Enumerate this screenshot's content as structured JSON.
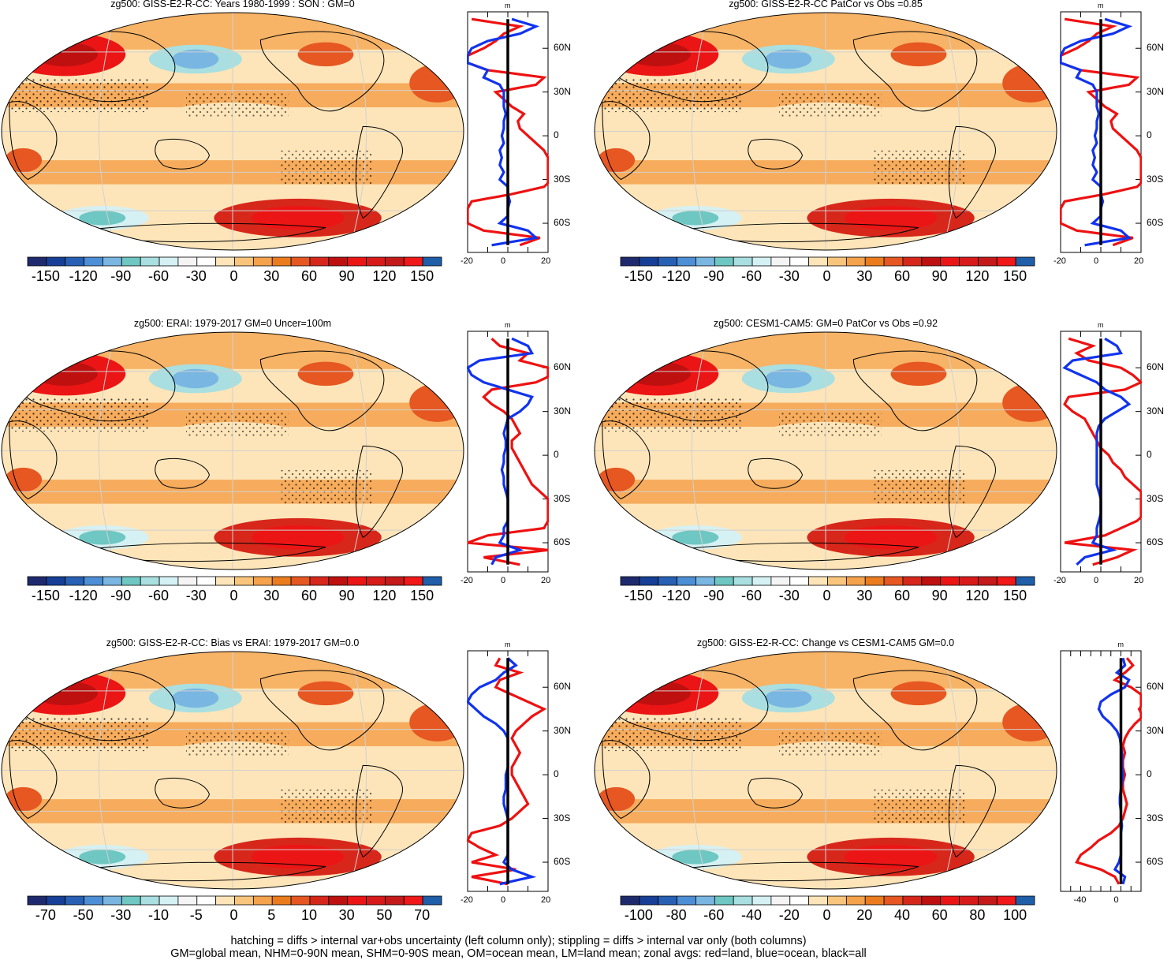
{
  "figure": {
    "footer_lines": [
      "hatching = diffs > internal var+obs uncertainty (left column only); stippling = diffs > internal var only (both columns)",
      "GM=global mean, NHM=0-90N mean, SHM=0-90S mean, OM=ocean mean, LM=land mean; zonal avgs: red=land, blue=ocean, black=all"
    ]
  },
  "colors": {
    "land_line": "#ee1111",
    "ocean_line": "#1133ee",
    "all_line": "#000000"
  },
  "chart_data": [
    {
      "type": "heatmap",
      "title": "zg500: GISS-E2-R-CC: Years 1980-1999 : SON : GM=0",
      "colorbar_labels": [
        "-150",
        "-120",
        "-90",
        "-60",
        "-30",
        "0",
        "30",
        "60",
        "90",
        "120",
        "150"
      ],
      "colorbar_colors": [
        "#1f2a6e",
        "#173f97",
        "#2760b5",
        "#4c8fd6",
        "#79b6e2",
        "#6ec7c2",
        "#a9dfe0",
        "#d6f1f3",
        "#f4f4f4",
        "#ffffff",
        "#fde5b9",
        "#f9c57c",
        "#f4a24b",
        "#ea7c1d",
        "#e65722",
        "#d7271b",
        "#bf1010",
        "#ec1515",
        "#d91a1a",
        "#c51a1a",
        "#f01818",
        "#1f5ea8"
      ],
      "profile": {
        "lat_ticks": [
          "60N",
          "30N",
          "0",
          "30S",
          "60S"
        ],
        "x_ticks": [
          "-20",
          "0",
          "20"
        ],
        "unit": "m",
        "lats": [
          80,
          75,
          70,
          65,
          60,
          55,
          50,
          45,
          40,
          35,
          30,
          25,
          20,
          15,
          10,
          5,
          0,
          -5,
          -10,
          -15,
          -20,
          -25,
          -30,
          -35,
          -40,
          -45,
          -50,
          -55,
          -60,
          -65,
          -70,
          -75
        ],
        "land": [
          -18,
          6,
          -2,
          -6,
          -12,
          -20,
          -20,
          -10,
          18,
          14,
          -6,
          -2,
          2,
          8,
          5,
          6,
          10,
          14,
          18,
          20,
          22,
          20,
          22,
          18,
          2,
          -18,
          -20,
          -20,
          -20,
          -12,
          16,
          6
        ],
        "ocean": [
          2,
          14,
          6,
          -10,
          -18,
          -20,
          -20,
          -10,
          -12,
          -4,
          -2,
          -2,
          -2,
          -1,
          -2,
          -2,
          -3,
          -2,
          -4,
          -3,
          -4,
          -2,
          -4,
          0,
          0,
          1,
          0,
          0,
          -4,
          10,
          14,
          -8
        ],
        "all": [
          0,
          0,
          0,
          0,
          0,
          0,
          0,
          0,
          0,
          0,
          0,
          0,
          0,
          0,
          0,
          0,
          0,
          0,
          0,
          0,
          0,
          0,
          0,
          0,
          0,
          0,
          0,
          0,
          0,
          0,
          0,
          0
        ]
      }
    },
    {
      "type": "heatmap",
      "title": "zg500: GISS-E2-R-CC PatCor vs Obs =0.85",
      "colorbar_labels": [
        "-150",
        "-120",
        "-90",
        "-60",
        "-30",
        "0",
        "30",
        "60",
        "90",
        "120",
        "150"
      ],
      "colorbar_colors": [
        "#1f2a6e",
        "#173f97",
        "#2760b5",
        "#4c8fd6",
        "#79b6e2",
        "#6ec7c2",
        "#a9dfe0",
        "#d6f1f3",
        "#f4f4f4",
        "#ffffff",
        "#fde5b9",
        "#f9c57c",
        "#f4a24b",
        "#ea7c1d",
        "#e65722",
        "#d7271b",
        "#bf1010",
        "#ec1515",
        "#d91a1a",
        "#c51a1a",
        "#f01818",
        "#1f5ea8"
      ],
      "profile": {
        "lat_ticks": [
          "60N",
          "30N",
          "0",
          "30S",
          "60S"
        ],
        "x_ticks": [
          "-20",
          "0",
          "20"
        ],
        "unit": "m",
        "lats": [
          80,
          75,
          70,
          65,
          60,
          55,
          50,
          45,
          40,
          35,
          30,
          25,
          20,
          15,
          10,
          5,
          0,
          -5,
          -10,
          -15,
          -20,
          -25,
          -30,
          -35,
          -40,
          -45,
          -50,
          -55,
          -60,
          -65,
          -70,
          -75
        ],
        "land": [
          -18,
          6,
          -2,
          -6,
          -12,
          -20,
          -20,
          -10,
          18,
          14,
          -6,
          -2,
          2,
          8,
          5,
          6,
          10,
          14,
          18,
          20,
          22,
          20,
          22,
          18,
          2,
          -18,
          -20,
          -20,
          -20,
          -12,
          16,
          6
        ],
        "ocean": [
          2,
          14,
          6,
          -10,
          -18,
          -20,
          -20,
          -10,
          -12,
          -4,
          -2,
          -2,
          -2,
          -1,
          -2,
          -2,
          -3,
          -2,
          -4,
          -3,
          -4,
          -2,
          -4,
          0,
          0,
          1,
          0,
          0,
          -4,
          10,
          14,
          -8
        ],
        "all": [
          0,
          0,
          0,
          0,
          0,
          0,
          0,
          0,
          0,
          0,
          0,
          0,
          0,
          0,
          0,
          0,
          0,
          0,
          0,
          0,
          0,
          0,
          0,
          0,
          0,
          0,
          0,
          0,
          0,
          0,
          0,
          0
        ]
      }
    },
    {
      "type": "heatmap",
      "title": "zg500: ERAI: 1979-2017 GM=0 Uncer=100m",
      "colorbar_labels": [
        "-150",
        "-120",
        "-90",
        "-60",
        "-30",
        "0",
        "30",
        "60",
        "90",
        "120",
        "150"
      ],
      "colorbar_colors": [
        "#1f2a6e",
        "#173f97",
        "#2760b5",
        "#4c8fd6",
        "#79b6e2",
        "#6ec7c2",
        "#a9dfe0",
        "#d6f1f3",
        "#f4f4f4",
        "#ffffff",
        "#fde5b9",
        "#f9c57c",
        "#f4a24b",
        "#ea7c1d",
        "#e65722",
        "#d7271b",
        "#bf1010",
        "#ec1515",
        "#d91a1a",
        "#c51a1a",
        "#f01818",
        "#1f5ea8"
      ],
      "profile": {
        "lat_ticks": [
          "60N",
          "30N",
          "0",
          "30S",
          "60S"
        ],
        "x_ticks": [
          "-20",
          "0",
          "20"
        ],
        "unit": "m",
        "lats": [
          80,
          75,
          70,
          65,
          60,
          55,
          50,
          45,
          40,
          35,
          30,
          25,
          20,
          15,
          10,
          5,
          0,
          -5,
          -10,
          -15,
          -20,
          -25,
          -30,
          -35,
          -40,
          -45,
          -50,
          -55,
          -60,
          -65,
          -70,
          -75
        ],
        "land": [
          -8,
          -4,
          10,
          6,
          20,
          22,
          14,
          -8,
          -12,
          -8,
          -2,
          2,
          4,
          6,
          2,
          2,
          4,
          6,
          8,
          10,
          12,
          16,
          20,
          24,
          22,
          20,
          18,
          -10,
          -20,
          20,
          -12,
          6
        ],
        "ocean": [
          2,
          10,
          12,
          -14,
          -20,
          -18,
          -12,
          0,
          12,
          10,
          6,
          0,
          -1,
          -2,
          -1,
          -1,
          -2,
          -2,
          -3,
          -2,
          -2,
          -1,
          0,
          0,
          0,
          0,
          -2,
          -2,
          -4,
          6,
          -6,
          -8
        ],
        "all": [
          0,
          0,
          0,
          0,
          0,
          0,
          0,
          0,
          0,
          0,
          0,
          0,
          0,
          0,
          0,
          0,
          0,
          0,
          0,
          0,
          0,
          0,
          0,
          0,
          0,
          0,
          0,
          0,
          0,
          0,
          0,
          0
        ]
      }
    },
    {
      "type": "heatmap",
      "title": "zg500: CESM1-CAM5: GM=0 PatCor vs Obs =0.92",
      "colorbar_labels": [
        "-150",
        "-120",
        "-90",
        "-60",
        "-30",
        "0",
        "30",
        "60",
        "90",
        "120",
        "150"
      ],
      "colorbar_colors": [
        "#1f2a6e",
        "#173f97",
        "#2760b5",
        "#4c8fd6",
        "#79b6e2",
        "#6ec7c2",
        "#a9dfe0",
        "#d6f1f3",
        "#f4f4f4",
        "#ffffff",
        "#fde5b9",
        "#f9c57c",
        "#f4a24b",
        "#ea7c1d",
        "#e65722",
        "#d7271b",
        "#bf1010",
        "#ec1515",
        "#d91a1a",
        "#c51a1a",
        "#f01818",
        "#1f5ea8"
      ],
      "profile": {
        "lat_ticks": [
          "60N",
          "30N",
          "0",
          "30S",
          "60S"
        ],
        "x_ticks": [
          "-20",
          "0",
          "20"
        ],
        "unit": "m",
        "lats": [
          80,
          75,
          70,
          65,
          60,
          55,
          50,
          45,
          40,
          35,
          30,
          25,
          20,
          15,
          10,
          5,
          0,
          -5,
          -10,
          -15,
          -20,
          -25,
          -30,
          -35,
          -40,
          -45,
          -50,
          -55,
          -60,
          -65,
          -70,
          -75
        ],
        "land": [
          -16,
          -4,
          -12,
          -6,
          10,
          16,
          20,
          12,
          -16,
          -18,
          -14,
          -8,
          -6,
          -4,
          -2,
          0,
          4,
          6,
          10,
          12,
          16,
          20,
          22,
          24,
          22,
          18,
          10,
          2,
          -18,
          16,
          8,
          -4
        ],
        "ocean": [
          2,
          8,
          10,
          -14,
          -18,
          -10,
          -2,
          2,
          10,
          14,
          8,
          2,
          -1,
          -2,
          -2,
          -2,
          -2,
          -2,
          -2,
          -2,
          -2,
          -1,
          0,
          0,
          0,
          -1,
          -2,
          -2,
          -4,
          6,
          -8,
          -12
        ],
        "all": [
          0,
          0,
          0,
          0,
          0,
          0,
          0,
          0,
          0,
          0,
          0,
          0,
          0,
          0,
          0,
          0,
          0,
          0,
          0,
          0,
          0,
          0,
          0,
          0,
          0,
          0,
          0,
          0,
          0,
          0,
          0,
          0
        ]
      }
    },
    {
      "type": "heatmap",
      "title": "zg500: GISS-E2-R-CC: Bias vs ERAI: 1979-2017  GM=0.0",
      "colorbar_labels": [
        "-70",
        "-50",
        "-30",
        "-10",
        "-5",
        "0",
        "5",
        "10",
        "30",
        "50",
        "70"
      ],
      "colorbar_colors": [
        "#1f2a6e",
        "#173f97",
        "#2760b5",
        "#4c8fd6",
        "#79b6e2",
        "#6ec7c2",
        "#a9dfe0",
        "#d6f1f3",
        "#f4f4f4",
        "#ffffff",
        "#fde5b9",
        "#f9c57c",
        "#f4a24b",
        "#ea7c1d",
        "#e65722",
        "#d7271b",
        "#bf1010",
        "#ec1515",
        "#d91a1a",
        "#c51a1a",
        "#f01818",
        "#1f5ea8"
      ],
      "profile": {
        "lat_ticks": [
          "60N",
          "30N",
          "0",
          "30S",
          "60S"
        ],
        "x_ticks": [
          "-20",
          "0",
          "20"
        ],
        "unit": "m",
        "lats": [
          80,
          75,
          70,
          65,
          60,
          55,
          50,
          45,
          40,
          35,
          30,
          25,
          20,
          15,
          10,
          5,
          0,
          -5,
          -10,
          -15,
          -20,
          -25,
          -30,
          -35,
          -40,
          -45,
          -50,
          -55,
          -60,
          -65,
          -70,
          -75
        ],
        "land": [
          -4,
          -6,
          6,
          -4,
          -6,
          2,
          10,
          18,
          12,
          8,
          4,
          2,
          4,
          6,
          4,
          2,
          2,
          4,
          6,
          8,
          10,
          6,
          2,
          -4,
          -18,
          -20,
          -14,
          -6,
          -18,
          4,
          -18,
          0
        ],
        "ocean": [
          0,
          4,
          -2,
          -6,
          -14,
          -18,
          -20,
          -16,
          -12,
          -6,
          -2,
          0,
          0,
          0,
          0,
          0,
          -1,
          -1,
          -1,
          -2,
          -2,
          -1,
          0,
          0,
          0,
          0,
          0,
          0,
          -2,
          2,
          12,
          -4
        ],
        "all": [
          0,
          0,
          0,
          0,
          0,
          0,
          0,
          0,
          0,
          0,
          0,
          0,
          0,
          0,
          0,
          0,
          0,
          0,
          0,
          0,
          0,
          0,
          0,
          0,
          0,
          0,
          0,
          0,
          0,
          0,
          0,
          0
        ]
      }
    },
    {
      "type": "heatmap",
      "title": "zg500: GISS-E2-R-CC: Change vs CESM1-CAM5 GM=0.0",
      "colorbar_labels": [
        "-100",
        "-80",
        "-60",
        "-40",
        "-20",
        "0",
        "20",
        "40",
        "60",
        "80",
        "100"
      ],
      "colorbar_colors": [
        "#1f2a6e",
        "#173f97",
        "#2760b5",
        "#4c8fd6",
        "#79b6e2",
        "#6ec7c2",
        "#a9dfe0",
        "#d6f1f3",
        "#f4f4f4",
        "#ffffff",
        "#fde5b9",
        "#f9c57c",
        "#f4a24b",
        "#ea7c1d",
        "#e65722",
        "#d7271b",
        "#bf1010",
        "#ec1515",
        "#d91a1a",
        "#c51a1a",
        "#f01818",
        "#1f5ea8"
      ],
      "profile": {
        "lat_ticks": [
          "60N",
          "30N",
          "0",
          "30S",
          "60S"
        ],
        "x_ticks": [
          "-40",
          "0"
        ],
        "unit": "m",
        "lats": [
          80,
          75,
          70,
          65,
          60,
          55,
          50,
          45,
          40,
          35,
          30,
          25,
          20,
          15,
          10,
          5,
          0,
          -5,
          -10,
          -15,
          -20,
          -25,
          -30,
          -35,
          -40,
          -45,
          -50,
          -55,
          -60,
          -65,
          -70,
          -75
        ],
        "land": [
          6,
          12,
          4,
          -6,
          10,
          20,
          24,
          18,
          22,
          14,
          8,
          4,
          2,
          4,
          2,
          2,
          4,
          2,
          2,
          4,
          6,
          4,
          2,
          -2,
          -10,
          -22,
          -30,
          -40,
          -44,
          -20,
          -6,
          -2
        ],
        "ocean": [
          2,
          4,
          -4,
          8,
          4,
          -10,
          -20,
          -22,
          -18,
          -10,
          -4,
          -1,
          0,
          1,
          1,
          1,
          2,
          1,
          0,
          -1,
          -1,
          0,
          0,
          1,
          0,
          0,
          0,
          0,
          -2,
          -6,
          4,
          2
        ],
        "all": [
          0,
          0,
          0,
          0,
          0,
          0,
          0,
          0,
          0,
          0,
          0,
          0,
          0,
          0,
          0,
          0,
          0,
          0,
          0,
          0,
          0,
          0,
          0,
          0,
          0,
          0,
          0,
          0,
          0,
          0,
          0,
          0
        ]
      }
    }
  ]
}
